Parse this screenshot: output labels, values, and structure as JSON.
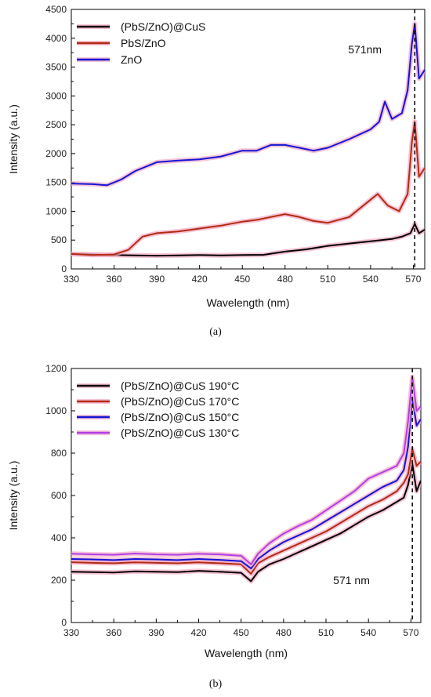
{
  "chart_data": [
    {
      "type": "line",
      "panel_label": "(a)",
      "xlabel": "Wavelength (nm)",
      "ylabel": "Intensity (a.u.)",
      "xlim": [
        330,
        578
      ],
      "ylim": [
        0,
        4500
      ],
      "xticks": [
        330,
        360,
        390,
        420,
        450,
        480,
        510,
        540,
        570
      ],
      "yticks": [
        0,
        500,
        1000,
        1500,
        2000,
        2500,
        3000,
        3500,
        4000,
        4500
      ],
      "legend_position": "top-left",
      "annotation": {
        "text": "571nm",
        "x": 571
      },
      "series": [
        {
          "name": "(PbS/ZnO)@CuS",
          "color": "#000000",
          "x": [
            330,
            345,
            360,
            375,
            390,
            405,
            420,
            435,
            450,
            465,
            480,
            495,
            510,
            525,
            540,
            555,
            562,
            568,
            571,
            574,
            578
          ],
          "y": [
            260,
            250,
            240,
            235,
            230,
            235,
            240,
            235,
            240,
            245,
            300,
            340,
            400,
            440,
            480,
            520,
            560,
            620,
            780,
            620,
            680
          ]
        },
        {
          "name": "PbS/ZnO",
          "color": "#b22a10",
          "x": [
            330,
            345,
            360,
            370,
            380,
            390,
            405,
            420,
            435,
            450,
            460,
            470,
            480,
            490,
            500,
            510,
            525,
            540,
            545,
            552,
            560,
            566,
            569,
            571,
            574,
            578
          ],
          "y": [
            260,
            240,
            250,
            330,
            560,
            620,
            650,
            700,
            750,
            820,
            850,
            900,
            950,
            900,
            830,
            800,
            900,
            1200,
            1300,
            1100,
            1000,
            1300,
            2200,
            2550,
            1600,
            1750
          ]
        },
        {
          "name": "ZnO",
          "color": "#1414d6",
          "x": [
            330,
            345,
            355,
            365,
            375,
            390,
            405,
            420,
            435,
            450,
            460,
            470,
            480,
            490,
            500,
            510,
            525,
            540,
            546,
            550,
            555,
            562,
            566,
            569,
            571,
            574,
            578
          ],
          "y": [
            1480,
            1470,
            1450,
            1550,
            1700,
            1850,
            1880,
            1900,
            1950,
            2050,
            2050,
            2150,
            2150,
            2100,
            2050,
            2100,
            2250,
            2420,
            2550,
            2900,
            2600,
            2700,
            3100,
            3900,
            4250,
            3300,
            3450
          ]
        }
      ]
    },
    {
      "type": "line",
      "panel_label": "(b)",
      "xlabel": "Wavelength (nm)",
      "ylabel": "Intensity (a.u.)",
      "xlim": [
        330,
        577
      ],
      "ylim": [
        0,
        1200
      ],
      "xticks": [
        330,
        360,
        390,
        420,
        450,
        480,
        510,
        540,
        570
      ],
      "yticks": [
        0,
        200,
        400,
        600,
        800,
        1000,
        1200
      ],
      "legend_position": "top-left",
      "annotation": {
        "text": "571 nm",
        "x": 571
      },
      "series": [
        {
          "name": "(PbS/ZnO)@CuS 190°C",
          "color": "#000000",
          "x": [
            330,
            345,
            360,
            375,
            390,
            405,
            420,
            435,
            450,
            457,
            462,
            470,
            480,
            490,
            500,
            510,
            520,
            530,
            540,
            550,
            560,
            565,
            568,
            571,
            574,
            577
          ],
          "y": [
            240,
            238,
            236,
            242,
            240,
            238,
            244,
            240,
            235,
            195,
            240,
            275,
            300,
            330,
            360,
            390,
            420,
            460,
            500,
            530,
            570,
            590,
            650,
            750,
            620,
            670
          ]
        },
        {
          "name": "(PbS/ZnO)@CuS 170°C",
          "color": "#b22a10",
          "x": [
            330,
            345,
            360,
            375,
            390,
            405,
            420,
            435,
            450,
            457,
            462,
            470,
            480,
            490,
            500,
            510,
            520,
            530,
            540,
            550,
            560,
            565,
            568,
            571,
            574,
            577
          ],
          "y": [
            285,
            282,
            280,
            284,
            282,
            280,
            284,
            280,
            275,
            230,
            280,
            310,
            340,
            370,
            400,
            430,
            470,
            510,
            550,
            580,
            620,
            660,
            700,
            820,
            740,
            760
          ]
        },
        {
          "name": "(PbS/ZnO)@CuS 150°C",
          "color": "#1414d6",
          "x": [
            330,
            345,
            360,
            375,
            390,
            405,
            420,
            435,
            450,
            457,
            462,
            470,
            480,
            490,
            500,
            510,
            520,
            530,
            540,
            550,
            560,
            565,
            568,
            571,
            574,
            577
          ],
          "y": [
            300,
            298,
            295,
            300,
            298,
            295,
            300,
            296,
            290,
            255,
            300,
            340,
            380,
            410,
            440,
            480,
            520,
            560,
            600,
            640,
            670,
            720,
            830,
            1060,
            930,
            960
          ]
        },
        {
          "name": "(PbS/ZnO)@CuS 130°C",
          "color": "#b23ee8",
          "x": [
            330,
            345,
            360,
            375,
            390,
            405,
            420,
            435,
            450,
            457,
            462,
            470,
            480,
            490,
            500,
            510,
            520,
            530,
            540,
            550,
            560,
            565,
            568,
            571,
            574,
            577
          ],
          "y": [
            325,
            322,
            320,
            326,
            322,
            320,
            325,
            322,
            315,
            275,
            325,
            375,
            420,
            455,
            485,
            530,
            575,
            620,
            680,
            710,
            740,
            800,
            950,
            1160,
            1000,
            1020
          ]
        }
      ]
    }
  ]
}
